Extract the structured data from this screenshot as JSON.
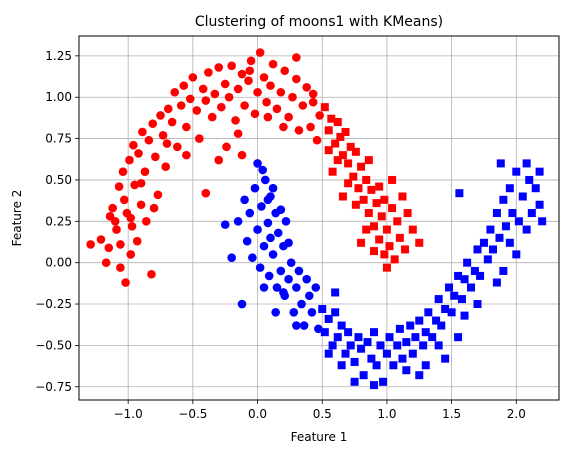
{
  "chart_data": {
    "type": "scatter",
    "title": "Clustering of moons1 with KMeans)",
    "xlabel": "Feature 1",
    "ylabel": "Feature 2",
    "xlim": [
      -1.38,
      2.33
    ],
    "ylim": [
      -0.83,
      1.37
    ],
    "xticks": [
      -1.0,
      -0.5,
      0.0,
      0.5,
      1.0,
      1.5,
      2.0
    ],
    "xtick_labels": [
      "−1.0",
      "−0.5",
      "0.0",
      "0.5",
      "1.0",
      "1.5",
      "2.0"
    ],
    "yticks": [
      -0.75,
      -0.5,
      -0.25,
      0.0,
      0.25,
      0.5,
      0.75,
      1.0,
      1.25
    ],
    "ytick_labels": [
      "−0.75",
      "−0.50",
      "−0.25",
      "0.00",
      "0.25",
      "0.50",
      "0.75",
      "1.00",
      "1.25"
    ],
    "grid": true,
    "colors": {
      "cluster_red": "#ff0000",
      "cluster_blue": "#0000ff",
      "grid": "#b0b0b0"
    },
    "series": [
      {
        "color": "#ff0000",
        "marker": "circle",
        "points": [
          [
            -1.29,
            0.11
          ],
          [
            -1.21,
            0.14
          ],
          [
            -1.17,
            0.0
          ],
          [
            -1.15,
            0.09
          ],
          [
            -1.14,
            0.28
          ],
          [
            -1.12,
            0.33
          ],
          [
            -1.09,
            0.2
          ],
          [
            -1.07,
            0.46
          ],
          [
            -1.06,
            0.11
          ],
          [
            -1.04,
            0.55
          ],
          [
            -1.03,
            0.38
          ],
          [
            -1.02,
            -0.12
          ],
          [
            -1.01,
            0.3
          ],
          [
            -0.99,
            0.62
          ],
          [
            -0.98,
            0.05
          ],
          [
            -0.97,
            0.22
          ],
          [
            -0.96,
            0.71
          ],
          [
            -0.95,
            0.47
          ],
          [
            -0.93,
            0.13
          ],
          [
            -0.92,
            0.66
          ],
          [
            -0.9,
            0.35
          ],
          [
            -0.89,
            0.79
          ],
          [
            -0.87,
            0.55
          ],
          [
            -0.86,
            0.25
          ],
          [
            -0.84,
            0.74
          ],
          [
            -0.82,
            -0.07
          ],
          [
            -0.81,
            0.84
          ],
          [
            -0.79,
            0.64
          ],
          [
            -0.77,
            0.41
          ],
          [
            -0.75,
            0.89
          ],
          [
            -0.73,
            0.77
          ],
          [
            -0.71,
            0.58
          ],
          [
            -0.69,
            0.93
          ],
          [
            -0.66,
            0.85
          ],
          [
            -0.64,
            1.03
          ],
          [
            -0.62,
            0.7
          ],
          [
            -0.59,
            0.95
          ],
          [
            -0.57,
            1.07
          ],
          [
            -0.55,
            0.82
          ],
          [
            -0.52,
            0.99
          ],
          [
            -0.5,
            1.12
          ],
          [
            -0.47,
            0.92
          ],
          [
            -0.45,
            0.75
          ],
          [
            -0.42,
            1.05
          ],
          [
            -0.4,
            0.98
          ],
          [
            -0.38,
            1.15
          ],
          [
            -0.35,
            0.88
          ],
          [
            -0.33,
            1.02
          ],
          [
            -0.3,
            1.18
          ],
          [
            -0.28,
            0.94
          ],
          [
            -0.25,
            1.08
          ],
          [
            -0.24,
            0.7
          ],
          [
            -0.22,
            1.0
          ],
          [
            -0.2,
            1.19
          ],
          [
            -0.17,
            0.86
          ],
          [
            -0.15,
            1.05
          ],
          [
            -0.12,
            1.14
          ],
          [
            -0.1,
            0.95
          ],
          [
            -0.07,
            1.1
          ],
          [
            -0.05,
            1.22
          ],
          [
            -0.02,
            0.9
          ],
          [
            0.0,
            1.03
          ],
          [
            0.02,
            1.27
          ],
          [
            0.05,
            1.12
          ],
          [
            0.07,
            0.97
          ],
          [
            0.1,
            1.07
          ],
          [
            0.12,
            1.2
          ],
          [
            0.15,
            0.93
          ],
          [
            0.18,
            1.03
          ],
          [
            0.21,
            1.16
          ],
          [
            0.24,
            0.88
          ],
          [
            0.27,
            1.0
          ],
          [
            0.3,
            1.11
          ],
          [
            0.32,
            0.8
          ],
          [
            0.35,
            0.95
          ],
          [
            0.38,
            1.06
          ],
          [
            0.41,
            0.82
          ],
          [
            0.43,
            0.97
          ],
          [
            0.46,
            0.74
          ],
          [
            0.48,
            0.89
          ],
          [
            0.3,
            1.24
          ],
          [
            -0.55,
            0.65
          ],
          [
            -0.4,
            0.42
          ],
          [
            -0.98,
            0.27
          ],
          [
            -1.1,
            0.25
          ],
          [
            -0.9,
            0.48
          ],
          [
            -0.7,
            0.72
          ],
          [
            0.2,
            0.82
          ],
          [
            0.08,
            0.88
          ],
          [
            -0.15,
            0.78
          ],
          [
            -0.3,
            0.62
          ],
          [
            0.43,
            1.02
          ],
          [
            -0.12,
            0.65
          ],
          [
            -0.06,
            1.16
          ],
          [
            -0.8,
            0.33
          ],
          [
            -1.06,
            -0.03
          ]
        ]
      },
      {
        "color": "#ff0000",
        "marker": "square",
        "points": [
          [
            0.52,
            0.94
          ],
          [
            0.55,
            0.8
          ],
          [
            0.57,
            0.87
          ],
          [
            0.6,
            0.72
          ],
          [
            0.62,
            0.85
          ],
          [
            0.64,
            0.76
          ],
          [
            0.66,
            0.65
          ],
          [
            0.68,
            0.79
          ],
          [
            0.7,
            0.6
          ],
          [
            0.72,
            0.7
          ],
          [
            0.74,
            0.52
          ],
          [
            0.76,
            0.67
          ],
          [
            0.78,
            0.45
          ],
          [
            0.8,
            0.58
          ],
          [
            0.82,
            0.38
          ],
          [
            0.84,
            0.5
          ],
          [
            0.86,
            0.3
          ],
          [
            0.88,
            0.44
          ],
          [
            0.9,
            0.22
          ],
          [
            0.92,
            0.36
          ],
          [
            0.94,
            0.14
          ],
          [
            0.96,
            0.28
          ],
          [
            0.98,
            0.05
          ],
          [
            1.0,
            0.2
          ],
          [
            1.02,
            0.1
          ],
          [
            1.04,
            0.33
          ],
          [
            1.06,
            0.02
          ],
          [
            1.08,
            0.25
          ],
          [
            1.1,
            0.15
          ],
          [
            1.12,
            0.4
          ],
          [
            1.14,
            0.08
          ],
          [
            1.16,
            0.3
          ],
          [
            1.2,
            0.2
          ],
          [
            1.25,
            0.12
          ],
          [
            0.76,
            0.35
          ],
          [
            0.84,
            0.2
          ],
          [
            0.9,
            0.07
          ],
          [
            0.94,
            0.46
          ],
          [
            0.98,
            0.38
          ],
          [
            1.04,
            0.5
          ],
          [
            0.62,
            0.62
          ],
          [
            0.58,
            0.55
          ],
          [
            0.55,
            0.68
          ],
          [
            0.7,
            0.48
          ],
          [
            0.8,
            0.12
          ],
          [
            0.86,
            0.62
          ],
          [
            0.66,
            0.4
          ],
          [
            1.0,
            -0.03
          ]
        ]
      },
      {
        "color": "#0000ff",
        "marker": "circle",
        "points": [
          [
            -0.25,
            0.23
          ],
          [
            -0.2,
            0.03
          ],
          [
            -0.15,
            0.25
          ],
          [
            -0.12,
            -0.25
          ],
          [
            -0.1,
            0.38
          ],
          [
            -0.08,
            0.13
          ],
          [
            -0.06,
            0.3
          ],
          [
            -0.04,
            0.03
          ],
          [
            -0.02,
            0.45
          ],
          [
            0.0,
            0.2
          ],
          [
            0.0,
            0.6
          ],
          [
            0.02,
            -0.03
          ],
          [
            0.03,
            0.34
          ],
          [
            0.05,
            0.1
          ],
          [
            0.06,
            0.5
          ],
          [
            0.08,
            0.24
          ],
          [
            0.09,
            -0.08
          ],
          [
            0.1,
            0.4
          ],
          [
            0.12,
            0.05
          ],
          [
            0.14,
            0.3
          ],
          [
            0.15,
            -0.15
          ],
          [
            0.16,
            0.18
          ],
          [
            0.18,
            -0.05
          ],
          [
            0.2,
            0.1
          ],
          [
            0.21,
            -0.2
          ],
          [
            0.22,
            0.25
          ],
          [
            0.24,
            -0.1
          ],
          [
            0.26,
            0.0
          ],
          [
            0.28,
            -0.3
          ],
          [
            0.3,
            -0.15
          ],
          [
            0.32,
            -0.05
          ],
          [
            0.34,
            -0.25
          ],
          [
            0.36,
            -0.38
          ],
          [
            0.38,
            -0.1
          ],
          [
            0.4,
            -0.2
          ],
          [
            0.42,
            -0.3
          ],
          [
            0.45,
            -0.15
          ],
          [
            0.47,
            -0.4
          ],
          [
            0.2,
            -0.18
          ],
          [
            0.12,
            0.45
          ],
          [
            0.04,
            0.56
          ],
          [
            0.08,
            0.38
          ],
          [
            0.18,
            0.32
          ],
          [
            0.1,
            0.15
          ],
          [
            0.05,
            -0.15
          ],
          [
            0.24,
            0.12
          ],
          [
            0.14,
            -0.3
          ],
          [
            0.3,
            -0.38
          ]
        ]
      },
      {
        "color": "#0000ff",
        "marker": "square",
        "points": [
          [
            0.5,
            -0.28
          ],
          [
            0.52,
            -0.42
          ],
          [
            0.55,
            -0.34
          ],
          [
            0.58,
            -0.5
          ],
          [
            0.6,
            -0.3
          ],
          [
            0.62,
            -0.45
          ],
          [
            0.65,
            -0.38
          ],
          [
            0.68,
            -0.55
          ],
          [
            0.7,
            -0.42
          ],
          [
            0.72,
            -0.5
          ],
          [
            0.75,
            -0.6
          ],
          [
            0.78,
            -0.45
          ],
          [
            0.8,
            -0.52
          ],
          [
            0.82,
            -0.68
          ],
          [
            0.85,
            -0.48
          ],
          [
            0.88,
            -0.58
          ],
          [
            0.9,
            -0.42
          ],
          [
            0.92,
            -0.62
          ],
          [
            0.95,
            -0.5
          ],
          [
            0.97,
            -0.72
          ],
          [
            1.0,
            -0.55
          ],
          [
            1.02,
            -0.45
          ],
          [
            1.05,
            -0.62
          ],
          [
            1.08,
            -0.5
          ],
          [
            1.1,
            -0.4
          ],
          [
            1.12,
            -0.58
          ],
          [
            1.15,
            -0.48
          ],
          [
            1.18,
            -0.38
          ],
          [
            1.2,
            -0.55
          ],
          [
            1.22,
            -0.45
          ],
          [
            1.25,
            -0.35
          ],
          [
            1.28,
            -0.5
          ],
          [
            1.3,
            -0.42
          ],
          [
            1.32,
            -0.3
          ],
          [
            1.35,
            -0.45
          ],
          [
            1.38,
            -0.35
          ],
          [
            1.4,
            -0.22
          ],
          [
            1.42,
            -0.38
          ],
          [
            1.45,
            -0.28
          ],
          [
            1.48,
            -0.15
          ],
          [
            1.5,
            -0.3
          ],
          [
            1.52,
            -0.2
          ],
          [
            1.55,
            -0.08
          ],
          [
            1.58,
            -0.22
          ],
          [
            1.6,
            -0.1
          ],
          [
            1.62,
            0.0
          ],
          [
            1.65,
            -0.15
          ],
          [
            1.68,
            -0.05
          ],
          [
            1.7,
            0.08
          ],
          [
            1.72,
            -0.08
          ],
          [
            1.75,
            0.12
          ],
          [
            1.78,
            0.02
          ],
          [
            1.8,
            0.2
          ],
          [
            1.82,
            0.08
          ],
          [
            1.85,
            0.3
          ],
          [
            1.87,
            0.15
          ],
          [
            1.9,
            0.38
          ],
          [
            1.92,
            0.22
          ],
          [
            1.95,
            0.45
          ],
          [
            1.97,
            0.3
          ],
          [
            2.0,
            0.55
          ],
          [
            2.02,
            0.25
          ],
          [
            2.05,
            0.4
          ],
          [
            2.08,
            0.2
          ],
          [
            2.1,
            0.5
          ],
          [
            2.12,
            0.3
          ],
          [
            2.15,
            0.45
          ],
          [
            2.18,
            0.35
          ],
          [
            2.2,
            0.25
          ],
          [
            1.88,
            0.6
          ],
          [
            2.08,
            0.6
          ],
          [
            1.56,
            0.42
          ],
          [
            1.3,
            -0.62
          ],
          [
            1.4,
            -0.5
          ],
          [
            1.6,
            -0.32
          ],
          [
            1.9,
            -0.05
          ],
          [
            0.75,
            -0.72
          ],
          [
            0.9,
            -0.74
          ],
          [
            1.15,
            -0.65
          ],
          [
            0.65,
            -0.62
          ],
          [
            1.45,
            -0.58
          ],
          [
            1.7,
            -0.25
          ],
          [
            1.85,
            -0.12
          ],
          [
            2.0,
            0.05
          ],
          [
            0.55,
            -0.55
          ],
          [
            1.25,
            -0.68
          ],
          [
            1.55,
            -0.45
          ],
          [
            1.95,
            0.12
          ],
          [
            2.18,
            0.55
          ],
          [
            0.6,
            -0.18
          ]
        ]
      }
    ]
  }
}
